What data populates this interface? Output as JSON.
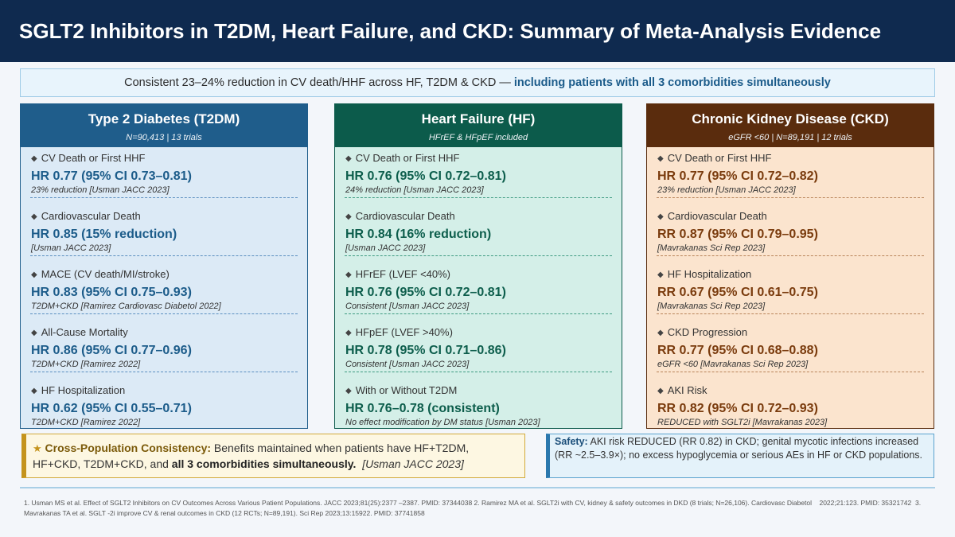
{
  "header": {
    "title": "SGLT2 Inhibitors in T2DM, Heart Failure, and CKD: Summary of Meta-Analysis Evidence"
  },
  "banner": {
    "text": "Consistent 23–24% reduction in CV death/HHF across HF, T2DM & CKD —",
    "highlight": "including patients with all 3 comorbidities simultaneously"
  },
  "icons": {
    "bullet": "◆",
    "star": "★"
  },
  "colors": {
    "page_bg": "#f3f6fa",
    "header_bg": "#0f2a4f",
    "banner_bg": "#e8f4fc",
    "banner_border": "#9fcbe7",
    "banner_highlight": "#1b5b8a",
    "consistency_bg": "#fdf7e2",
    "consistency_border": "#d2aa3a",
    "consistency_accent": "#c4931c",
    "consistency_label": "#7b5a0a",
    "safety_bg": "#e4f2fa",
    "safety_border": "#5ba3cf",
    "safety_accent": "#2b78ad",
    "safety_label": "#1b4f7a",
    "divider": "#a9cfe6"
  },
  "columns": [
    {
      "title": "Type 2 Diabetes (T2DM)",
      "subtitle": "N=90,413 | 13 trials",
      "colors": {
        "accent": "#1f5d8b",
        "body_bg": "#dceaf6",
        "value": "#1c5c8a",
        "dash": "#5b8fc0"
      },
      "items": [
        {
          "label": "CV Death or First HHF",
          "value": "HR 0.77 (95% CI 0.73–0.81)",
          "note": "23% reduction [Usman JACC 2023]"
        },
        {
          "label": "Cardiovascular Death",
          "value": "HR 0.85 (15% reduction)",
          "note": "[Usman JACC 2023]"
        },
        {
          "label": "MACE (CV death/MI/stroke)",
          "value": "HR 0.83 (95% CI 0.75–0.93)",
          "note": "T2DM+CKD [Ramirez Cardiovasc Diabetol 2022]"
        },
        {
          "label": "All-Cause Mortality",
          "value": "HR 0.86 (95% CI 0.77–0.96)",
          "note": "T2DM+CKD [Ramirez 2022]"
        },
        {
          "label": "HF Hospitalization",
          "value": "HR 0.62 (95% CI 0.55–0.71)",
          "note": "T2DM+CKD [Ramirez 2022]"
        }
      ]
    },
    {
      "title": "Heart Failure (HF)",
      "subtitle": "HFrEF & HFpEF included",
      "colors": {
        "accent": "#0c5b4b",
        "body_bg": "#d4efe8",
        "value": "#0d5e4c",
        "dash": "#3f9b82"
      },
      "items": [
        {
          "label": "CV Death or First HHF",
          "value": "HR 0.76 (95% CI 0.72–0.81)",
          "note": "24% reduction [Usman JACC 2023]"
        },
        {
          "label": "Cardiovascular Death",
          "value": "HR 0.84 (16% reduction)",
          "note": "[Usman JACC 2023]"
        },
        {
          "label": "HFrEF (LVEF <40%)",
          "value": "HR 0.76 (95% CI 0.72–0.81)",
          "note": "Consistent [Usman JACC 2023]"
        },
        {
          "label": "HFpEF (LVEF >40%)",
          "value": "HR 0.78 (95% CI 0.71–0.86)",
          "note": "Consistent [Usman JACC 2023]"
        },
        {
          "label": "With or Without T2DM",
          "value": "HR 0.76–0.78 (consistent)",
          "note": "No effect modification by DM status [Usman 2023]"
        }
      ]
    },
    {
      "title": "Chronic Kidney Disease (CKD)",
      "subtitle": "eGFR <60 | N=89,191 | 12 trials",
      "colors": {
        "accent": "#5a2c0d",
        "body_bg": "#fbe4ce",
        "value": "#7a3b0d",
        "dash": "#b9845a"
      },
      "items": [
        {
          "label": "CV Death or First HHF",
          "value": "HR 0.77 (95% CI 0.72–0.82)",
          "note": "23% reduction [Usman JACC 2023]"
        },
        {
          "label": "Cardiovascular Death",
          "value": "RR 0.87 (95% CI 0.79–0.95)",
          "note": "[Mavrakanas Sci Rep 2023]"
        },
        {
          "label": "HF Hospitalization",
          "value": "RR 0.67 (95% CI 0.61–0.75)",
          "note": "[Mavrakanas Sci Rep 2023]"
        },
        {
          "label": "CKD Progression",
          "value": "RR 0.77 (95% CI 0.68–0.88)",
          "note": "eGFR <60 [Mavrakanas Sci Rep 2023]"
        },
        {
          "label": "AKI Risk",
          "value": "RR 0.82 (95% CI 0.72–0.93)",
          "note": "REDUCED with SGLT2i [Mavrakanas 2023]"
        }
      ]
    }
  ],
  "consistency": {
    "label": "Cross-Population Consistency:",
    "text": "Benefits maintained when patients have HF+T2DM, HF+CKD, T2DM+CKD, and",
    "emphasis": "all 3 comorbidities simultaneously.",
    "citation": "[Usman JACC 2023]"
  },
  "safety": {
    "label": "Safety:",
    "text": "AKI risk REDUCED (RR 0.82) in CKD; genital mycotic infections increased (RR ~2.5–3.9×); no excess hypoglycemia or serious AEs in HF or CKD populations."
  },
  "footer": {
    "references": "1. Usman MS et al. Effect of SGLT2 Inhibitors on CV Outcomes Across Various Patient Populations. JACC 2023;81(25):2377 –2387. PMID: 37344038 2. Ramirez MA et al. SGLT2i with CV, kidney & safety outcomes in DKD (8 trials; N=26,106). Cardiovasc Diabetol    2022;21:123. PMID: 35321742  3. Mavrakanas TA et al. SGLT -2i improve CV & renal outcomes in CKD (12 RCTs; N=89,191). Sci Rep 2023;13:15922. PMID: 37741858"
  }
}
